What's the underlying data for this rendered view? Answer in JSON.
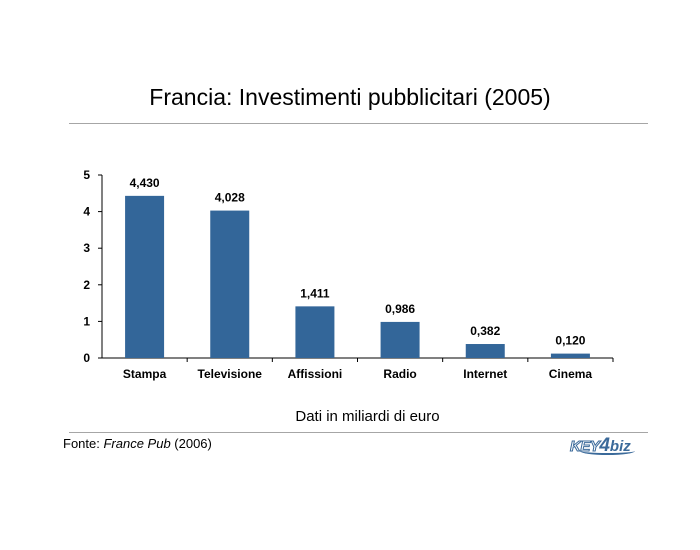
{
  "title": "Francia: Investimenti pubblicitari (2005)",
  "chart_data": {
    "type": "bar",
    "categories": [
      "Stampa",
      "Televisione",
      "Affissioni",
      "Radio",
      "Internet",
      "Cinema"
    ],
    "values": [
      4.43,
      4.028,
      1.411,
      0.986,
      0.382,
      0.12
    ],
    "value_labels": [
      "4,430",
      "4,028",
      "1,411",
      "0,986",
      "0,382",
      "0,120"
    ],
    "ylim": [
      0,
      5
    ],
    "yticks": [
      0,
      1,
      2,
      3,
      4,
      5
    ],
    "bar_color": "#336699",
    "grid": false,
    "xlabel": "Dati in miliardi di euro"
  },
  "source": {
    "prefix": "Fonte: ",
    "publication": "France Pub",
    "year": " (2006)"
  },
  "logo": {
    "part1": "KEY",
    "part2": "4",
    "part3": "biz"
  }
}
